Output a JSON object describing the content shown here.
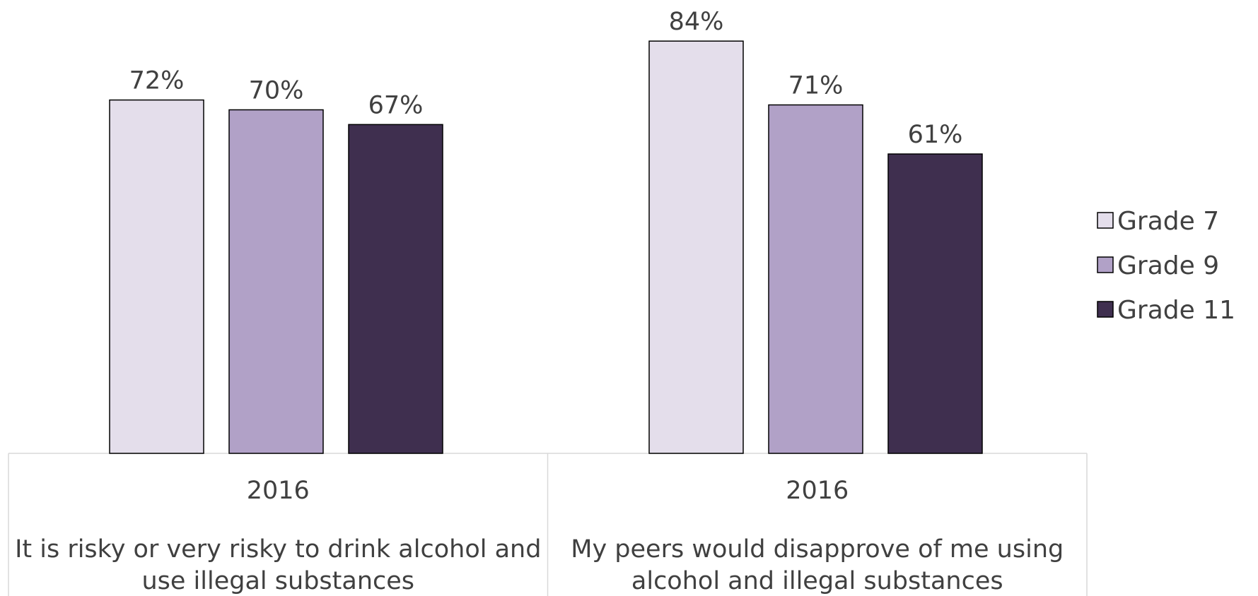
{
  "chart_data": {
    "type": "bar",
    "title": "",
    "xlabel": "",
    "ylabel": "",
    "ylim": [
      0,
      100
    ],
    "grid": false,
    "legend_position": "right",
    "categories": [
      {
        "year": "2016",
        "label_lines": [
          "It is risky or very risky to drink alcohol and",
          "use illegal substances"
        ]
      },
      {
        "year": "2016",
        "label_lines": [
          "My peers would disapprove of me using",
          "alcohol and illegal substances"
        ]
      }
    ],
    "series": [
      {
        "name": "Grade 7",
        "color": "#E4DEEB",
        "values": [
          72,
          84
        ],
        "labels": [
          "72%",
          "84%"
        ]
      },
      {
        "name": "Grade 9",
        "color": "#B1A1C7",
        "values": [
          70,
          71
        ],
        "labels": [
          "70%",
          "71%"
        ]
      },
      {
        "name": "Grade 11",
        "color": "#3F2F4F",
        "values": [
          67,
          61
        ],
        "labels": [
          "67%",
          "61%"
        ]
      }
    ]
  }
}
